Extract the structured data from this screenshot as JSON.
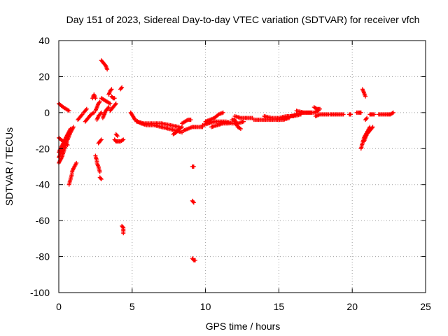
{
  "chart_data": {
    "type": "scatter",
    "title": "Day 151 of 2023, Sidereal Day-to-day VTEC variation (SDTVAR) for receiver vfch",
    "xlabel": "GPS time / hours",
    "ylabel": "SDTVAR / TECUs",
    "xlim": [
      0,
      25
    ],
    "ylim": [
      -100,
      40
    ],
    "xticks": [
      0,
      5,
      10,
      15,
      20,
      25
    ],
    "yticks": [
      -100,
      -80,
      -60,
      -40,
      -20,
      0,
      20,
      40
    ],
    "grid": true,
    "marker": "plus",
    "color": "#ff0000",
    "series": [
      {
        "name": "SDTVAR",
        "segments": [
          [
            [
              0.0,
              5
            ],
            [
              0.3,
              3
            ],
            [
              0.5,
              2
            ],
            [
              0.7,
              1
            ]
          ],
          [
            [
              0.0,
              -14
            ],
            [
              0.3,
              -16
            ],
            [
              0.6,
              -18
            ]
          ],
          [
            [
              0.0,
              -28
            ],
            [
              0.2,
              -25
            ],
            [
              0.4,
              -20
            ],
            [
              0.6,
              -15
            ],
            [
              0.8,
              -11
            ],
            [
              1.0,
              -8
            ]
          ],
          [
            [
              0.0,
              -25
            ],
            [
              0.2,
              -21
            ],
            [
              0.4,
              -17
            ],
            [
              0.6,
              -13
            ]
          ],
          [
            [
              0.0,
              -22
            ],
            [
              0.3,
              -17
            ],
            [
              0.6,
              -12
            ],
            [
              0.8,
              -9
            ]
          ],
          [
            [
              0.7,
              -40
            ],
            [
              0.8,
              -37
            ],
            [
              0.9,
              -34
            ]
          ],
          [
            [
              0.9,
              -33
            ],
            [
              1.0,
              -31
            ],
            [
              1.2,
              -28
            ]
          ],
          [
            [
              1.3,
              -4
            ],
            [
              1.4,
              -3
            ],
            [
              1.6,
              -1
            ]
          ],
          [
            [
              1.7,
              0
            ],
            [
              1.8,
              1
            ],
            [
              1.9,
              2
            ]
          ],
          [
            [
              1.8,
              -5
            ],
            [
              2.0,
              -3
            ],
            [
              2.2,
              -1
            ],
            [
              2.4,
              0
            ]
          ],
          [
            [
              2.3,
              8
            ],
            [
              2.4,
              10
            ],
            [
              2.5,
              8
            ]
          ],
          [
            [
              2.5,
              1
            ],
            [
              2.6,
              3
            ],
            [
              2.7,
              5
            ],
            [
              2.8,
              6
            ]
          ],
          [
            [
              2.6,
              -4
            ],
            [
              2.7,
              -2
            ],
            [
              2.9,
              0
            ]
          ],
          [
            [
              2.5,
              -24
            ],
            [
              2.6,
              -27
            ]
          ],
          [
            [
              2.6,
              -28
            ],
            [
              2.7,
              -30
            ],
            [
              2.8,
              -33
            ]
          ],
          [
            [
              2.8,
              -36
            ],
            [
              2.9,
              -37
            ]
          ],
          [
            [
              2.7,
              -17
            ],
            [
              2.8,
              -16
            ],
            [
              2.9,
              -15
            ]
          ],
          [
            [
              2.9,
              29
            ],
            [
              3.0,
              28
            ],
            [
              3.1,
              27
            ],
            [
              3.2,
              26
            ],
            [
              3.3,
              24
            ]
          ],
          [
            [
              2.9,
              8
            ],
            [
              3.1,
              7
            ],
            [
              3.3,
              6
            ],
            [
              3.5,
              5
            ]
          ],
          [
            [
              3.0,
              -3
            ],
            [
              3.1,
              -1
            ],
            [
              3.2,
              1
            ],
            [
              3.4,
              3
            ]
          ],
          [
            [
              3.4,
              10
            ],
            [
              3.5,
              12
            ],
            [
              3.6,
              13
            ]
          ],
          [
            [
              3.6,
              9
            ],
            [
              3.7,
              8
            ],
            [
              3.8,
              8
            ]
          ],
          [
            [
              3.5,
              1
            ],
            [
              3.7,
              3
            ],
            [
              3.9,
              5
            ]
          ],
          [
            [
              3.8,
              -15
            ],
            [
              3.9,
              -16
            ],
            [
              4.0,
              -16
            ],
            [
              4.2,
              -16
            ],
            [
              4.4,
              -15
            ]
          ],
          [
            [
              3.9,
              -12
            ],
            [
              4.0,
              -13
            ]
          ],
          [
            [
              4.3,
              14
            ],
            [
              4.2,
              13
            ]
          ],
          [
            [
              4.3,
              -63
            ],
            [
              4.4,
              -64
            ],
            [
              4.4,
              -67
            ]
          ],
          [
            [
              4.9,
              0
            ],
            [
              5.2,
              -4
            ],
            [
              5.6,
              -6
            ],
            [
              6.0,
              -7
            ],
            [
              6.5,
              -7
            ],
            [
              7.0,
              -8
            ],
            [
              7.5,
              -9
            ],
            [
              8.0,
              -10
            ],
            [
              8.4,
              -11
            ]
          ],
          [
            [
              5.3,
              -5
            ],
            [
              5.8,
              -6
            ],
            [
              6.4,
              -6
            ],
            [
              7.0,
              -6
            ],
            [
              7.6,
              -7
            ],
            [
              8.2,
              -8
            ]
          ],
          [
            [
              7.8,
              -12
            ],
            [
              8.0,
              -11
            ],
            [
              8.2,
              -9
            ],
            [
              8.4,
              -8
            ]
          ],
          [
            [
              8.4,
              -6
            ],
            [
              8.6,
              -5
            ],
            [
              8.8,
              -4
            ],
            [
              9.0,
              -4
            ]
          ],
          [
            [
              8.5,
              -10
            ],
            [
              8.8,
              -9
            ],
            [
              9.1,
              -8
            ],
            [
              9.4,
              -8
            ],
            [
              9.8,
              -8
            ]
          ],
          [
            [
              9.1,
              -30
            ],
            [
              9.2,
              -30
            ]
          ],
          [
            [
              9.1,
              -49
            ],
            [
              9.2,
              -50
            ]
          ],
          [
            [
              9.1,
              -81
            ],
            [
              9.2,
              -82
            ],
            [
              9.3,
              -82
            ]
          ],
          [
            [
              9.8,
              -7
            ],
            [
              10.2,
              -6
            ],
            [
              10.6,
              -5
            ],
            [
              11.0,
              -5
            ],
            [
              11.4,
              -5
            ],
            [
              11.8,
              -6
            ],
            [
              12.2,
              -6
            ],
            [
              12.6,
              -5
            ]
          ],
          [
            [
              10.0,
              -5
            ],
            [
              10.3,
              -4
            ],
            [
              10.6,
              -3
            ],
            [
              10.9,
              -1
            ],
            [
              11.2,
              0
            ]
          ],
          [
            [
              10.4,
              -8
            ],
            [
              10.8,
              -7
            ],
            [
              11.2,
              -6
            ],
            [
              11.6,
              -6
            ]
          ],
          [
            [
              11.8,
              -4
            ],
            [
              12.0,
              -4
            ],
            [
              12.2,
              -8
            ],
            [
              12.4,
              -9
            ]
          ],
          [
            [
              12.0,
              -2
            ],
            [
              12.4,
              -3
            ],
            [
              12.8,
              -3
            ],
            [
              13.2,
              -3
            ]
          ],
          [
            [
              13.3,
              -4
            ],
            [
              13.7,
              -4
            ],
            [
              14.1,
              -4
            ],
            [
              14.5,
              -4
            ],
            [
              14.9,
              -4
            ],
            [
              15.3,
              -4
            ],
            [
              15.7,
              -3
            ]
          ],
          [
            [
              14.0,
              -2
            ],
            [
              14.5,
              -3
            ],
            [
              15.0,
              -3
            ],
            [
              15.5,
              -2
            ],
            [
              16.0,
              -2
            ],
            [
              16.5,
              -1
            ]
          ],
          [
            [
              15.8,
              -2
            ],
            [
              16.2,
              -1
            ],
            [
              16.6,
              0
            ],
            [
              17.0,
              0
            ],
            [
              17.4,
              0
            ],
            [
              17.7,
              1
            ]
          ],
          [
            [
              16.2,
              1
            ],
            [
              16.7,
              0
            ],
            [
              17.2,
              0
            ]
          ],
          [
            [
              17.4,
              3
            ],
            [
              17.6,
              2
            ],
            [
              17.8,
              2
            ]
          ],
          [
            [
              17.5,
              -2
            ],
            [
              17.8,
              -1
            ],
            [
              18.1,
              -1
            ],
            [
              18.4,
              -1
            ]
          ],
          [
            [
              18.5,
              -1
            ],
            [
              18.8,
              -1
            ],
            [
              19.1,
              -1
            ],
            [
              19.4,
              -1
            ]
          ],
          [
            [
              19.8,
              -1
            ],
            [
              19.9,
              -1
            ]
          ],
          [
            [
              20.3,
              0
            ],
            [
              20.5,
              0
            ],
            [
              20.6,
              0
            ]
          ],
          [
            [
              20.7,
              13
            ],
            [
              20.8,
              11
            ],
            [
              20.9,
              9
            ]
          ],
          [
            [
              20.6,
              -20
            ],
            [
              20.7,
              -17
            ],
            [
              20.8,
              -14
            ],
            [
              21.0,
              -11
            ],
            [
              21.2,
              -8
            ]
          ],
          [
            [
              20.8,
              -16
            ],
            [
              20.9,
              -14
            ],
            [
              21.0,
              -12
            ],
            [
              21.2,
              -10
            ],
            [
              21.4,
              -8
            ]
          ],
          [
            [
              20.9,
              -4
            ],
            [
              21.0,
              -3
            ]
          ],
          [
            [
              21.2,
              -1
            ],
            [
              21.3,
              -1
            ],
            [
              21.5,
              -1
            ]
          ],
          [
            [
              21.8,
              -1
            ],
            [
              22.1,
              -1
            ],
            [
              22.4,
              -1
            ],
            [
              22.6,
              -1
            ],
            [
              22.8,
              0
            ]
          ]
        ]
      }
    ]
  }
}
